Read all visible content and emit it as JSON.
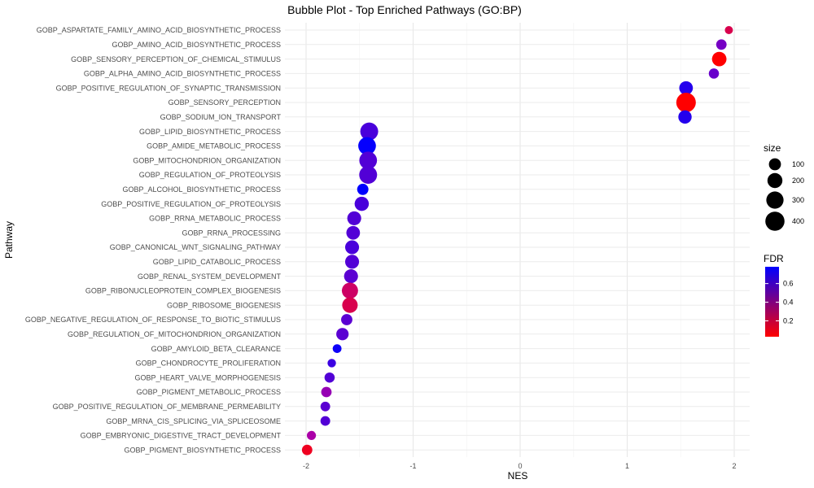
{
  "chart_data": {
    "type": "scatter",
    "title": "Bubble Plot - Top Enriched Pathways (GO:BP)",
    "xlabel": "NES",
    "ylabel": "Pathway",
    "xlim": [
      -2.2,
      2.15
    ],
    "x_ticks": [
      -2,
      -1,
      0,
      1,
      2
    ],
    "x_tick_labels": [
      "-2",
      "-1",
      "0",
      "1",
      "2"
    ],
    "grid": true,
    "points": [
      {
        "pathway": "GOBP_ASPARTATE_FAMILY_AMINO_ACID_BIOSYNTHETIC_PROCESS",
        "nes": 1.95,
        "size": 20,
        "fdr": 0.2
      },
      {
        "pathway": "GOBP_AMINO_ACID_BIOSYNTHETIC_PROCESS",
        "nes": 1.88,
        "size": 60,
        "fdr": 0.52
      },
      {
        "pathway": "GOBP_SENSORY_PERCEPTION_OF_CHEMICAL_STIMULUS",
        "nes": 1.86,
        "size": 180,
        "fdr": 0.03
      },
      {
        "pathway": "GOBP_ALPHA_AMINO_ACID_BIOSYNTHETIC_PROCESS",
        "nes": 1.81,
        "size": 55,
        "fdr": 0.55
      },
      {
        "pathway": "GOBP_POSITIVE_REGULATION_OF_SYNAPTIC_TRANSMISSION",
        "nes": 1.55,
        "size": 150,
        "fdr": 0.7
      },
      {
        "pathway": "GOBP_SENSORY_PERCEPTION",
        "nes": 1.55,
        "size": 420,
        "fdr": 0.03
      },
      {
        "pathway": "GOBP_SODIUM_ION_TRANSPORT",
        "nes": 1.54,
        "size": 140,
        "fdr": 0.7
      },
      {
        "pathway": "GOBP_LIPID_BIOSYNTHETIC_PROCESS",
        "nes": -1.41,
        "size": 330,
        "fdr": 0.62
      },
      {
        "pathway": "GOBP_AMIDE_METABOLIC_PROCESS",
        "nes": -1.43,
        "size": 320,
        "fdr": 0.77
      },
      {
        "pathway": "GOBP_MITOCHONDRION_ORGANIZATION",
        "nes": -1.42,
        "size": 320,
        "fdr": 0.6
      },
      {
        "pathway": "GOBP_REGULATION_OF_PROTEOLYSIS",
        "nes": -1.42,
        "size": 330,
        "fdr": 0.6
      },
      {
        "pathway": "GOBP_ALCOHOL_BIOSYNTHETIC_PROCESS",
        "nes": -1.47,
        "size": 80,
        "fdr": 0.78
      },
      {
        "pathway": "GOBP_POSITIVE_REGULATION_OF_PROTEOLYSIS",
        "nes": -1.48,
        "size": 170,
        "fdr": 0.62
      },
      {
        "pathway": "GOBP_RRNA_METABOLIC_PROCESS",
        "nes": -1.55,
        "size": 160,
        "fdr": 0.6
      },
      {
        "pathway": "GOBP_RRNA_PROCESSING",
        "nes": -1.56,
        "size": 150,
        "fdr": 0.6
      },
      {
        "pathway": "GOBP_CANONICAL_WNT_SIGNALING_PATHWAY",
        "nes": -1.57,
        "size": 160,
        "fdr": 0.62
      },
      {
        "pathway": "GOBP_LIPID_CATABOLIC_PROCESS",
        "nes": -1.57,
        "size": 160,
        "fdr": 0.6
      },
      {
        "pathway": "GOBP_RENAL_SYSTEM_DEVELOPMENT",
        "nes": -1.58,
        "size": 160,
        "fdr": 0.58
      },
      {
        "pathway": "GOBP_RIBONUCLEOPROTEIN_COMPLEX_BIOGENESIS",
        "nes": -1.59,
        "size": 250,
        "fdr": 0.25
      },
      {
        "pathway": "GOBP_RIBOSOME_BIOGENESIS",
        "nes": -1.59,
        "size": 220,
        "fdr": 0.2
      },
      {
        "pathway": "GOBP_NEGATIVE_REGULATION_OF_RESPONSE_TO_BIOTIC_STIMULUS",
        "nes": -1.62,
        "size": 80,
        "fdr": 0.58
      },
      {
        "pathway": "GOBP_REGULATION_OF_MITOCHONDRION_ORGANIZATION",
        "nes": -1.66,
        "size": 110,
        "fdr": 0.58
      },
      {
        "pathway": "GOBP_AMYLOID_BETA_CLEARANCE",
        "nes": -1.71,
        "size": 30,
        "fdr": 0.75
      },
      {
        "pathway": "GOBP_CHONDROCYTE_PROLIFERATION",
        "nes": -1.76,
        "size": 25,
        "fdr": 0.65
      },
      {
        "pathway": "GOBP_HEART_VALVE_MORPHOGENESIS",
        "nes": -1.78,
        "size": 55,
        "fdr": 0.6
      },
      {
        "pathway": "GOBP_PIGMENT_METABOLIC_PROCESS",
        "nes": -1.81,
        "size": 60,
        "fdr": 0.45
      },
      {
        "pathway": "GOBP_POSITIVE_REGULATION_OF_MEMBRANE_PERMEABILITY",
        "nes": -1.82,
        "size": 45,
        "fdr": 0.58
      },
      {
        "pathway": "GOBP_MRNA_CIS_SPLICING_VIA_SPLICEOSOME",
        "nes": -1.82,
        "size": 45,
        "fdr": 0.6
      },
      {
        "pathway": "GOBP_EMBRYONIC_DIGESTIVE_TRACT_DEVELOPMENT",
        "nes": -1.95,
        "size": 35,
        "fdr": 0.4
      },
      {
        "pathway": "GOBP_PIGMENT_BIOSYNTHETIC_PROCESS",
        "nes": -1.99,
        "size": 60,
        "fdr": 0.1
      }
    ],
    "size_legend": {
      "title": "size",
      "values": [
        100,
        200,
        300,
        400
      ],
      "labels": [
        "100",
        "200",
        "300",
        "400"
      ]
    },
    "color_legend": {
      "title": "FDR",
      "range": [
        0.03,
        0.78
      ],
      "breaks": [
        0.2,
        0.4,
        0.6
      ],
      "labels": [
        "0.2",
        "0.4",
        "0.6"
      ],
      "low_color": "#ff0000",
      "high_color": "#0000ff"
    },
    "legend_position": "right"
  }
}
